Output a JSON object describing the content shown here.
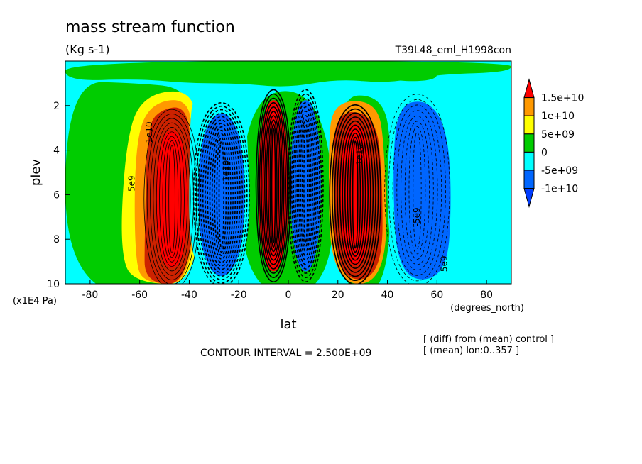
{
  "chart_data": {
    "type": "heatmap",
    "title": "mass stream function",
    "units": "(Kg s-1)",
    "experiment": "T39L48_eml_H1998con",
    "xlabel": "lat",
    "x_units": "(degrees_north)",
    "ylabel": "plev",
    "y_units": "(x1E4 Pa)",
    "xlim": [
      -90,
      90
    ],
    "ylim": [
      10,
      0
    ],
    "x_ticks": [
      "-80",
      "-60",
      "-40",
      "-20",
      "0",
      "20",
      "40",
      "60",
      "80"
    ],
    "x_tick_values": [
      -80,
      -60,
      -40,
      -20,
      0,
      20,
      40,
      60,
      80
    ],
    "y_ticks": [
      "2",
      "4",
      "6",
      "8",
      "10"
    ],
    "y_tick_values": [
      2,
      4,
      6,
      8,
      10
    ],
    "colorbar": {
      "labels": [
        "1.5e+10",
        "1e+10",
        "5e+09",
        "0",
        "-5e+09",
        "-1e+10"
      ],
      "levels": [
        15000000000,
        10000000000,
        5000000000,
        0,
        -5000000000,
        -10000000000
      ],
      "colors": [
        "#ff0000",
        "#ff9900",
        "#ffff00",
        "#00cc00",
        "#00ffff",
        "#0066ff",
        "#003cff"
      ]
    },
    "contour_interval_text": "CONTOUR INTERVAL = 2.500E+09",
    "contour_labels": [
      "5e9",
      "1e10",
      "-5e9",
      "-1e10"
    ],
    "notes": [
      "[ (diff) from (mean) control ]",
      "[ (mean) lon:0..357 ]"
    ],
    "cells": [
      {
        "name": "sh-ferrel-positive",
        "center_lat": -47,
        "center_plev": 6,
        "peak": 15000000000
      },
      {
        "name": "sh-negative",
        "center_lat": -28,
        "center_plev": 6,
        "peak": -15000000000
      },
      {
        "name": "sh-hadley-positive",
        "center_lat": -6,
        "center_plev": 5.5,
        "peak": 15000000000
      },
      {
        "name": "nh-hadley-negative",
        "center_lat": 6,
        "center_plev": 5.5,
        "peak": -15000000000
      },
      {
        "name": "nh-positive",
        "center_lat": 27,
        "center_plev": 6,
        "peak": 15000000000
      },
      {
        "name": "nh-ferrel-negative",
        "center_lat": 50,
        "center_plev": 5.5,
        "peak": -10000000000
      }
    ]
  }
}
